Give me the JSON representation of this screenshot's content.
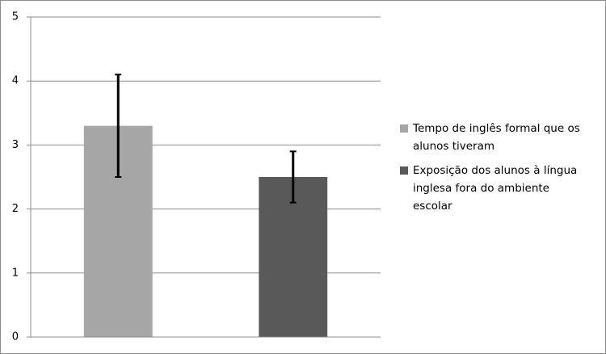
{
  "chart_data": {
    "type": "bar",
    "categories": [
      null
    ],
    "series": [
      {
        "name": "Tempo de inglês formal que os alunos tiveram",
        "color": "#a6a6a6",
        "values": [
          3.3
        ],
        "errors": [
          0.8
        ]
      },
      {
        "name": "Exposição dos alunos à língua inglesa fora do ambiente escolar",
        "color": "#595959",
        "values": [
          2.5
        ],
        "errors": [
          0.4
        ]
      }
    ],
    "ylim": [
      0,
      5
    ],
    "yticks": [
      0,
      1,
      2,
      3,
      4,
      5
    ],
    "grid": true,
    "legend": "right"
  }
}
